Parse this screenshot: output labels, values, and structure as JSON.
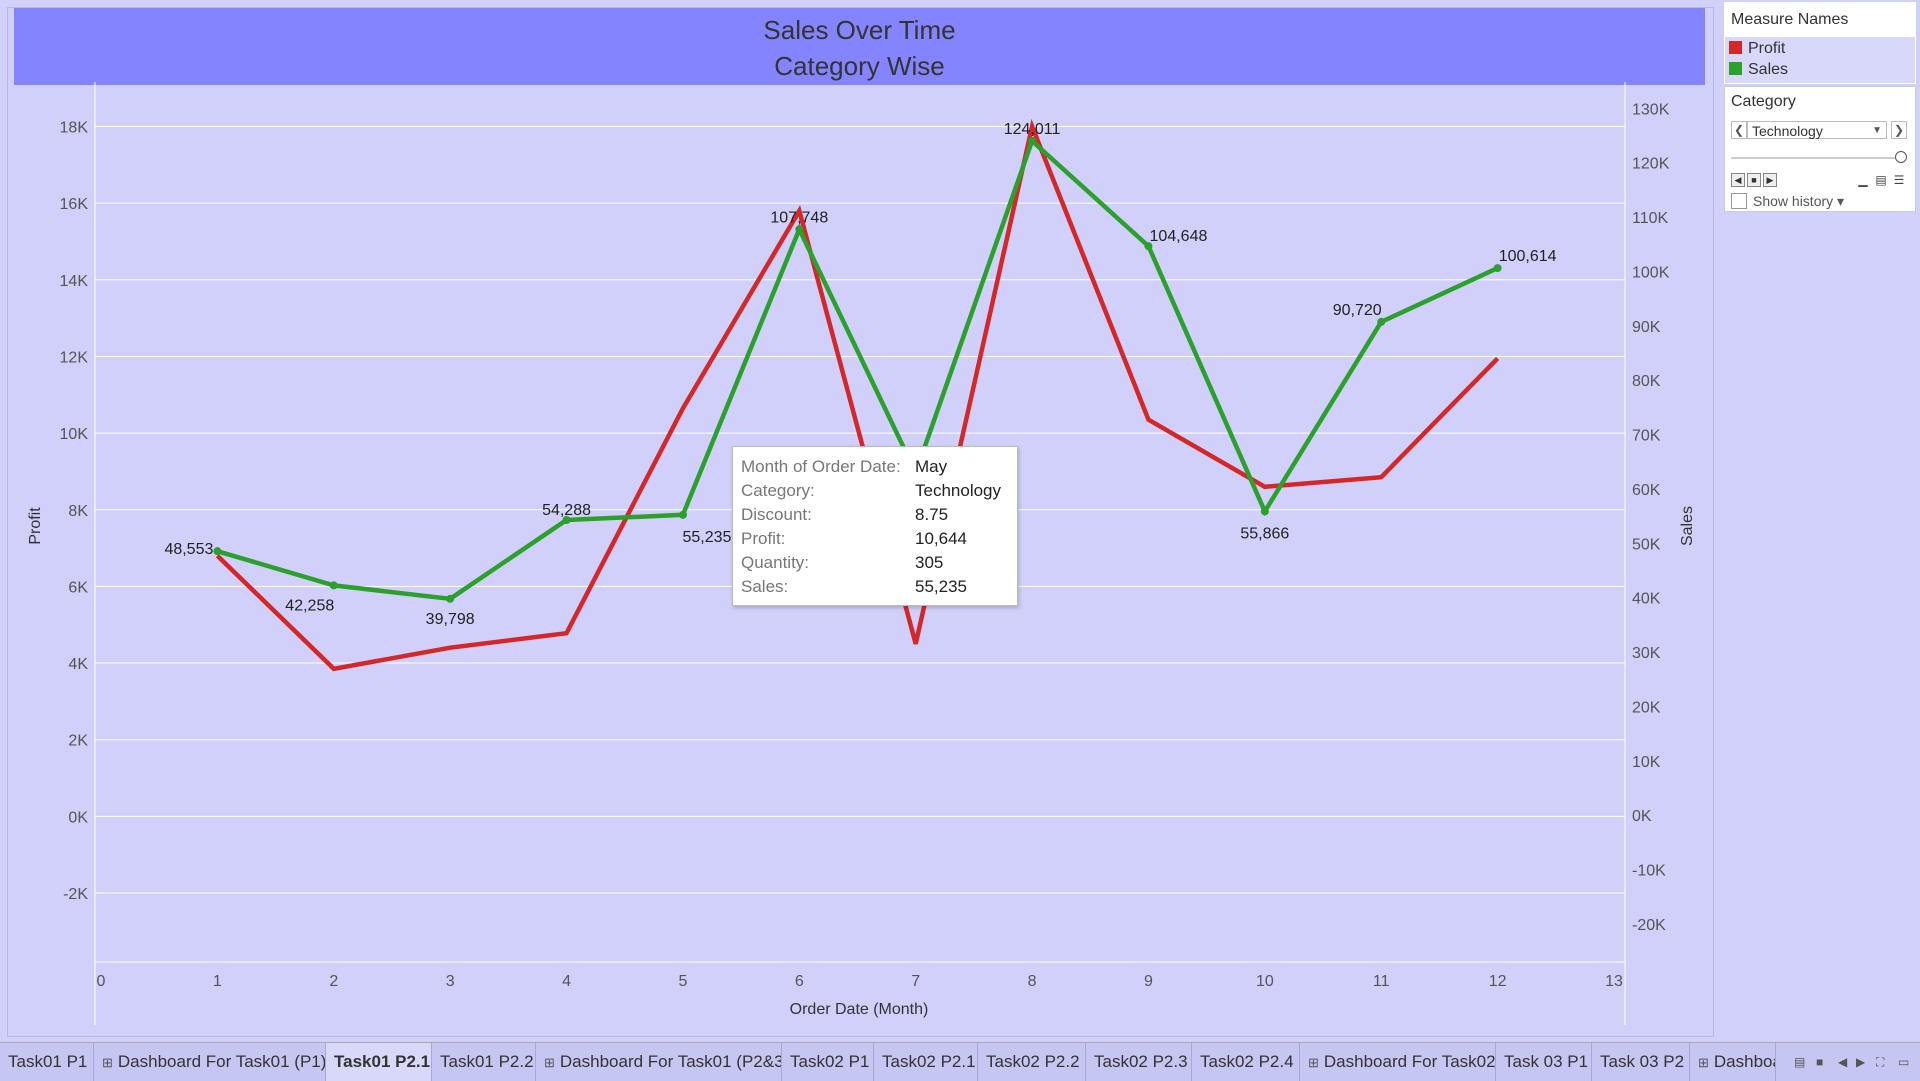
{
  "title": {
    "line1": "Sales Over Time",
    "line2": "Category Wise"
  },
  "legend": {
    "header": "Measure Names",
    "items": [
      {
        "label": "Profit",
        "color": "#d62728"
      },
      {
        "label": "Sales",
        "color": "#2ca02c"
      }
    ]
  },
  "filter": {
    "header": "Category",
    "selected": "Technology",
    "show_history": "Show history"
  },
  "tooltip": [
    {
      "k": "Month of Order Date:",
      "v": "May"
    },
    {
      "k": "Category:",
      "v": "Technology"
    },
    {
      "k": "Discount:",
      "v": "8.75"
    },
    {
      "k": "Profit:",
      "v": "10,644"
    },
    {
      "k": "Quantity:",
      "v": "305"
    },
    {
      "k": "Sales:",
      "v": "55,235"
    }
  ],
  "tabs": [
    {
      "label": "Task01 P1",
      "dashboard": false,
      "active": false
    },
    {
      "label": "Dashboard For Task01 (P1)",
      "dashboard": true,
      "active": false
    },
    {
      "label": "Task01 P2.1",
      "dashboard": false,
      "active": true
    },
    {
      "label": "Task01 P2.2",
      "dashboard": false,
      "active": false
    },
    {
      "label": "Dashboard For Task01 (P2&3)",
      "dashboard": true,
      "active": false
    },
    {
      "label": "Task02 P1",
      "dashboard": false,
      "active": false
    },
    {
      "label": "Task02 P2.1",
      "dashboard": false,
      "active": false
    },
    {
      "label": "Task02 P2.2",
      "dashboard": false,
      "active": false
    },
    {
      "label": "Task02 P2.3",
      "dashboard": false,
      "active": false
    },
    {
      "label": "Task02 P2.4",
      "dashboard": false,
      "active": false
    },
    {
      "label": "Dashboard For Task02",
      "dashboard": true,
      "active": false
    },
    {
      "label": "Task 03 P1",
      "dashboard": false,
      "active": false
    },
    {
      "label": "Task 03 P2",
      "dashboard": false,
      "active": false
    },
    {
      "label": "Dashboa",
      "dashboard": true,
      "active": false
    }
  ],
  "chart_data": {
    "type": "line",
    "title": "Sales Over Time Category Wise",
    "xlabel": "Order Date (Month)",
    "ylabel_left": "Profit",
    "ylabel_right": "Sales",
    "x": [
      1,
      2,
      3,
      4,
      5,
      6,
      7,
      8,
      9,
      10,
      11,
      12
    ],
    "xlim": [
      0,
      13
    ],
    "x_ticks": [
      0,
      1,
      2,
      3,
      4,
      5,
      6,
      7,
      8,
      9,
      10,
      11,
      12,
      13
    ],
    "ylim_left": [
      -3800,
      18900
    ],
    "left_ticks": [
      -2000,
      0,
      2000,
      4000,
      6000,
      8000,
      10000,
      12000,
      14000,
      16000,
      18000
    ],
    "left_tick_labels": [
      "-2K",
      "0K",
      "2K",
      "4K",
      "6K",
      "8K",
      "10K",
      "12K",
      "14K",
      "16K",
      "18K"
    ],
    "ylim_right": [
      -27000,
      133000
    ],
    "right_ticks": [
      -20000,
      -10000,
      0,
      10000,
      20000,
      30000,
      40000,
      50000,
      60000,
      70000,
      80000,
      90000,
      100000,
      110000,
      120000,
      130000
    ],
    "right_tick_labels": [
      "-20K",
      "-10K",
      "0K",
      "10K",
      "20K",
      "30K",
      "40K",
      "50K",
      "60K",
      "70K",
      "80K",
      "90K",
      "100K",
      "110K",
      "120K",
      "130K"
    ],
    "grid": true,
    "legend": "top-right",
    "series": [
      {
        "name": "Profit",
        "axis": "left",
        "color": "#d62728",
        "values": [
          6800,
          3850,
          4400,
          4780,
          10644,
          15800,
          4500,
          18000,
          10350,
          8600,
          8850,
          11950
        ]
      },
      {
        "name": "Sales",
        "axis": "right",
        "color": "#2ca02c",
        "values": [
          48553,
          42258,
          39798,
          54288,
          55235,
          107748,
          63000,
          124011,
          104648,
          55866,
          90720,
          100614
        ],
        "labels": [
          "48,553",
          "42,258",
          "39,798",
          "54,288",
          "55,235",
          "107,748",
          "",
          "124,011",
          "104,648",
          "55,866",
          "90,720",
          "100,614"
        ]
      }
    ]
  }
}
